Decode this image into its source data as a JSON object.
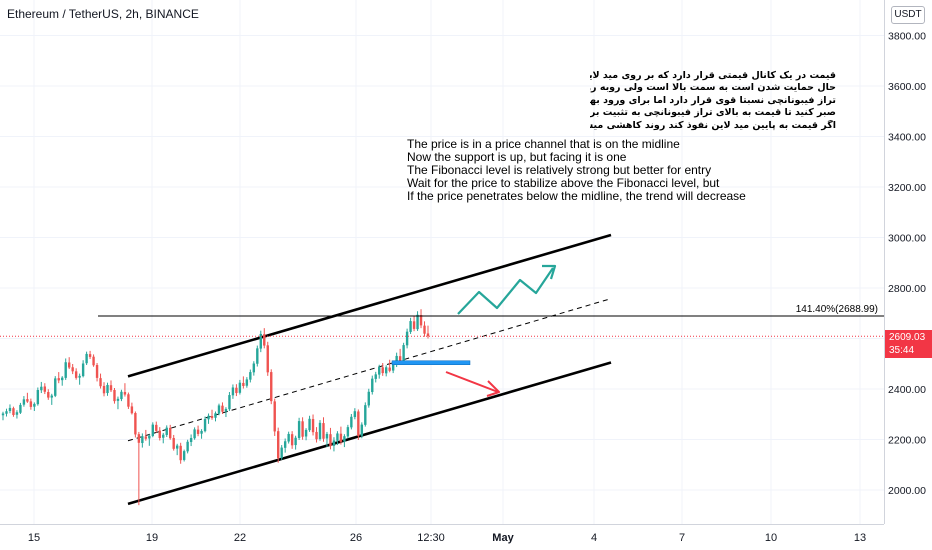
{
  "header": {
    "symbol_title": "Ethereum / TetherUS, 2h, BINANCE",
    "currency": "USDT"
  },
  "chart_data": {
    "type": "candlestick",
    "title": "Ethereum / TetherUS, 2h, BINANCE",
    "y_axis": {
      "ticks": [
        "3800.00",
        "3600.00",
        "3400.00",
        "3200.00",
        "3000.00",
        "2800.00",
        "2600.00",
        "2400.00",
        "2200.00",
        "2000.00"
      ],
      "tick_values": [
        3800,
        3600,
        3400,
        3200,
        3000,
        2800,
        2600,
        2400,
        2200,
        2000
      ],
      "range": [
        1870,
        3980
      ]
    },
    "x_axis": {
      "ticks": [
        "15",
        "19",
        "22",
        "26",
        "12:30",
        "May",
        "4",
        "7",
        "10",
        "13"
      ]
    },
    "candles": [
      [
        2296,
        2310,
        2276,
        2303
      ],
      [
        2302,
        2322,
        2291,
        2312
      ],
      [
        2313,
        2339,
        2304,
        2325
      ],
      [
        2324,
        2330,
        2290,
        2297
      ],
      [
        2298,
        2316,
        2283,
        2308
      ],
      [
        2306,
        2345,
        2301,
        2337
      ],
      [
        2338,
        2372,
        2330,
        2359
      ],
      [
        2360,
        2385,
        2345,
        2350
      ],
      [
        2351,
        2362,
        2318,
        2329
      ],
      [
        2330,
        2347,
        2313,
        2341
      ],
      [
        2340,
        2406,
        2334,
        2396
      ],
      [
        2395,
        2428,
        2384,
        2409
      ],
      [
        2410,
        2423,
        2380,
        2389
      ],
      [
        2388,
        2399,
        2357,
        2366
      ],
      [
        2366,
        2381,
        2337,
        2374
      ],
      [
        2373,
        2451,
        2368,
        2442
      ],
      [
        2443,
        2467,
        2423,
        2434
      ],
      [
        2435,
        2451,
        2413,
        2445
      ],
      [
        2444,
        2521,
        2436,
        2506
      ],
      [
        2505,
        2526,
        2479,
        2485
      ],
      [
        2486,
        2499,
        2459,
        2470
      ],
      [
        2470,
        2482,
        2437,
        2444
      ],
      [
        2445,
        2461,
        2417,
        2452
      ],
      [
        2451,
        2514,
        2446,
        2501
      ],
      [
        2502,
        2548,
        2495,
        2539
      ],
      [
        2538,
        2551,
        2519,
        2527
      ],
      [
        2528,
        2537,
        2488,
        2494
      ],
      [
        2495,
        2503,
        2430,
        2444
      ],
      [
        2443,
        2461,
        2402,
        2411
      ],
      [
        2412,
        2427,
        2371,
        2383
      ],
      [
        2384,
        2425,
        2373,
        2416
      ],
      [
        2415,
        2434,
        2388,
        2395
      ],
      [
        2396,
        2404,
        2342,
        2352
      ],
      [
        2353,
        2370,
        2320,
        2361
      ],
      [
        2360,
        2397,
        2352,
        2389
      ],
      [
        2388,
        2423,
        2370,
        2378
      ],
      [
        2379,
        2386,
        2321,
        2330
      ],
      [
        2331,
        2346,
        2299,
        2304
      ],
      [
        2305,
        2311,
        2208,
        2220
      ],
      [
        2221,
        2230,
        1940,
        2187
      ],
      [
        2186,
        2224,
        2168,
        2213
      ],
      [
        2212,
        2238,
        2195,
        2203
      ],
      [
        2204,
        2221,
        2175,
        2215
      ],
      [
        2214,
        2268,
        2209,
        2259
      ],
      [
        2258,
        2271,
        2227,
        2234
      ],
      [
        2235,
        2249,
        2196,
        2206
      ],
      [
        2207,
        2226,
        2185,
        2219
      ],
      [
        2218,
        2256,
        2210,
        2247
      ],
      [
        2246,
        2258,
        2199,
        2205
      ],
      [
        2206,
        2218,
        2156,
        2163
      ],
      [
        2164,
        2183,
        2138,
        2176
      ],
      [
        2175,
        2187,
        2104,
        2118
      ],
      [
        2119,
        2160,
        2113,
        2154
      ],
      [
        2153,
        2199,
        2145,
        2191
      ],
      [
        2190,
        2220,
        2174,
        2206
      ],
      [
        2205,
        2248,
        2199,
        2240
      ],
      [
        2239,
        2255,
        2213,
        2222
      ],
      [
        2223,
        2241,
        2203,
        2234
      ],
      [
        2233,
        2291,
        2228,
        2281
      ],
      [
        2280,
        2303,
        2262,
        2294
      ],
      [
        2293,
        2318,
        2278,
        2285
      ],
      [
        2286,
        2311,
        2272,
        2304
      ],
      [
        2303,
        2342,
        2296,
        2335
      ],
      [
        2334,
        2347,
        2301,
        2310
      ],
      [
        2311,
        2328,
        2289,
        2321
      ],
      [
        2320,
        2388,
        2313,
        2376
      ],
      [
        2375,
        2418,
        2361,
        2406
      ],
      [
        2405,
        2419,
        2372,
        2384
      ],
      [
        2385,
        2436,
        2378,
        2425
      ],
      [
        2424,
        2450,
        2402,
        2412
      ],
      [
        2413,
        2447,
        2405,
        2438
      ],
      [
        2437,
        2477,
        2426,
        2467
      ],
      [
        2466,
        2510,
        2453,
        2501
      ],
      [
        2500,
        2572,
        2489,
        2561
      ],
      [
        2560,
        2631,
        2546,
        2618
      ],
      [
        2617,
        2641,
        2561,
        2572
      ],
      [
        2573,
        2587,
        2452,
        2466
      ],
      [
        2467,
        2478,
        2340,
        2352
      ],
      [
        2351,
        2362,
        2214,
        2232
      ],
      [
        2233,
        2247,
        2108,
        2126
      ],
      [
        2127,
        2178,
        2119,
        2168
      ],
      [
        2167,
        2204,
        2148,
        2193
      ],
      [
        2192,
        2231,
        2184,
        2222
      ],
      [
        2221,
        2233,
        2163,
        2177
      ],
      [
        2178,
        2215,
        2160,
        2207
      ],
      [
        2206,
        2286,
        2198,
        2273
      ],
      [
        2272,
        2288,
        2199,
        2211
      ],
      [
        2212,
        2245,
        2197,
        2238
      ],
      [
        2237,
        2294,
        2230,
        2282
      ],
      [
        2281,
        2299,
        2216,
        2229
      ],
      [
        2230,
        2249,
        2188,
        2201
      ],
      [
        2202,
        2277,
        2195,
        2266
      ],
      [
        2265,
        2288,
        2191,
        2203
      ],
      [
        2204,
        2230,
        2170,
        2222
      ],
      [
        2221,
        2246,
        2161,
        2174
      ],
      [
        2175,
        2209,
        2153,
        2196
      ],
      [
        2195,
        2233,
        2178,
        2224
      ],
      [
        2223,
        2251,
        2180,
        2191
      ],
      [
        2192,
        2221,
        2170,
        2213
      ],
      [
        2212,
        2258,
        2205,
        2249
      ],
      [
        2248,
        2301,
        2240,
        2290
      ],
      [
        2289,
        2324,
        2280,
        2312
      ],
      [
        2311,
        2319,
        2198,
        2214
      ],
      [
        2215,
        2268,
        2205,
        2259
      ],
      [
        2258,
        2347,
        2251,
        2336
      ],
      [
        2335,
        2401,
        2326,
        2389
      ],
      [
        2388,
        2453,
        2378,
        2441
      ],
      [
        2440,
        2468,
        2426,
        2458
      ],
      [
        2457,
        2496,
        2441,
        2487
      ],
      [
        2486,
        2503,
        2452,
        2463
      ],
      [
        2462,
        2494,
        2450,
        2486
      ],
      [
        2485,
        2516,
        2466,
        2472
      ],
      [
        2473,
        2512,
        2463,
        2505
      ],
      [
        2504,
        2544,
        2487,
        2531
      ],
      [
        2530,
        2559,
        2500,
        2512
      ],
      [
        2511,
        2583,
        2503,
        2574
      ],
      [
        2573,
        2639,
        2561,
        2627
      ],
      [
        2626,
        2682,
        2618,
        2669
      ],
      [
        2668,
        2690,
        2629,
        2638
      ],
      [
        2637,
        2708,
        2630,
        2694
      ],
      [
        2693,
        2716,
        2641,
        2652
      ],
      [
        2651,
        2668,
        2607,
        2619
      ],
      [
        2620,
        2651,
        2600,
        2609
      ]
    ],
    "levels": [
      {
        "label": "141.40%(2688.99)",
        "value": 2688.99
      }
    ],
    "last_price": {
      "value": "2609.03",
      "countdown": "35:44",
      "numeric": 2609.03
    },
    "channel": {
      "upper": [
        [
          2450,
          3010
        ]
      ],
      "lower": [
        [
          1945,
          2505
        ]
      ],
      "mid": [
        [
          2195,
          2758
        ]
      ]
    },
    "colors": {
      "up": "#26a69a",
      "down": "#ef5350",
      "accent_red": "#f23645",
      "accent_green": "#26a69a",
      "support_blue": "#2196f3",
      "grid": "#f0f3fa"
    }
  },
  "annotations": {
    "english_note": [
      "The price is in a price channel that is on the midline",
      "Now the support is up, but facing it is one",
      "The Fibonacci level is relatively strong but better for entry",
      "Wait for the price to stabilize above the Fibonacci level, but",
      "If the price penetrates below the midline, the trend will decrease"
    ],
    "persian_note": [
      "قیمت در یک کانال قیمتی قرار دارد که بر روی مید لاین در",
      "حال حمایت شدن است به سمت بالا است ولی روبه روی آن یک",
      "تراز فیبونانچی نسبتا قوی قرار دارد اما برای ورود بهتر است",
      "صبر کنید تا قیمت به بالای تراز فیبونانچی به تثبیت برسد اما",
      "اگر قیمت به پایین مید لاین نفوذ کند روند کاهشی میشود"
    ]
  }
}
